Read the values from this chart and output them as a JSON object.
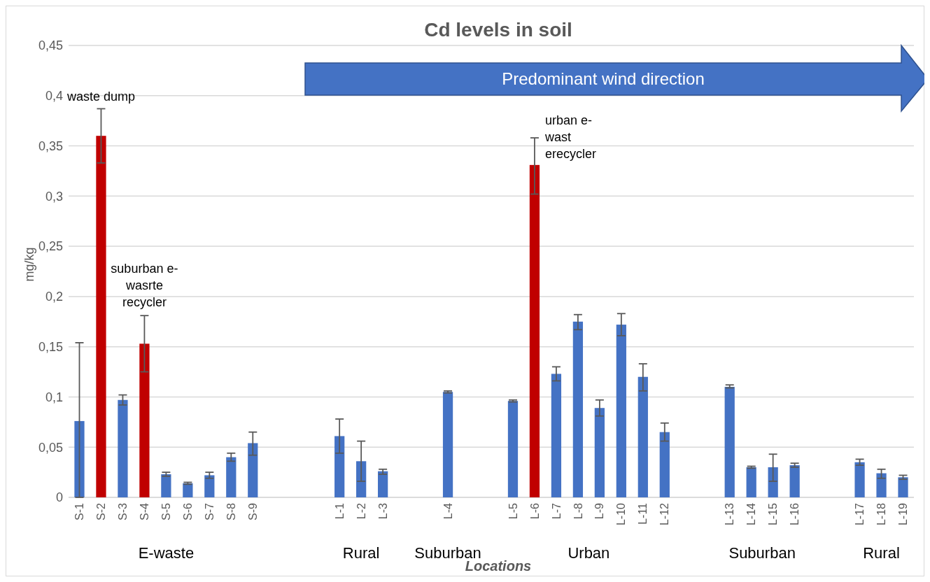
{
  "chart_data": {
    "type": "bar",
    "title": "Cd levels in soil",
    "xlabel": "Locations",
    "ylabel": "mg/kg",
    "categories": [
      "S-1",
      "S-2",
      "S-3",
      "S-4",
      "S-5",
      "S-6",
      "S-7",
      "S-8",
      "S-9",
      null,
      null,
      null,
      "L-1",
      "L-2",
      "L-3",
      null,
      null,
      "L-4",
      null,
      null,
      "L-5",
      "L-6",
      "L-7",
      "L-8",
      "L-9",
      "L-10",
      "L-11",
      "L-12",
      null,
      null,
      "L-13",
      "L-14",
      "L-15",
      "L-16",
      null,
      null,
      "L-17",
      "L-18",
      "L-19"
    ],
    "values": [
      0.076,
      0.36,
      0.097,
      0.153,
      0.023,
      0.014,
      0.022,
      0.04,
      0.054,
      null,
      null,
      null,
      0.061,
      0.036,
      0.026,
      null,
      null,
      0.105,
      null,
      null,
      0.096,
      0.331,
      0.123,
      0.175,
      0.089,
      0.172,
      0.12,
      0.065,
      null,
      null,
      0.11,
      0.03,
      0.03,
      0.032,
      null,
      null,
      0.035,
      0.024,
      0.02
    ],
    "colors": [
      "#4472c4",
      "#c00000",
      "#4472c4",
      "#c00000",
      "#4472c4",
      "#4472c4",
      "#4472c4",
      "#4472c4",
      "#4472c4",
      null,
      null,
      null,
      "#4472c4",
      "#4472c4",
      "#4472c4",
      null,
      null,
      "#4472c4",
      null,
      null,
      "#4472c4",
      "#c00000",
      "#4472c4",
      "#4472c4",
      "#4472c4",
      "#4472c4",
      "#4472c4",
      "#4472c4",
      null,
      null,
      "#4472c4",
      "#4472c4",
      "#4472c4",
      "#4472c4",
      null,
      null,
      "#4472c4",
      "#4472c4",
      "#4472c4"
    ],
    "errors": [
      [
        0,
        0.154
      ],
      [
        0.333,
        0.387
      ],
      [
        0.092,
        0.102
      ],
      [
        0.125,
        0.181
      ],
      [
        0.021,
        0.025
      ],
      [
        0.013,
        0.015
      ],
      [
        0.019,
        0.025
      ],
      [
        0.036,
        0.044
      ],
      [
        0.042,
        0.065
      ],
      null,
      null,
      null,
      [
        0.044,
        0.078
      ],
      [
        0.016,
        0.056
      ],
      [
        0.023,
        0.028
      ],
      null,
      null,
      [
        0.104,
        0.106
      ],
      null,
      null,
      [
        0.095,
        0.097
      ],
      [
        0.302,
        0.358
      ],
      [
        0.116,
        0.13
      ],
      [
        0.167,
        0.182
      ],
      [
        0.081,
        0.097
      ],
      [
        0.161,
        0.183
      ],
      [
        0.106,
        0.133
      ],
      [
        0.056,
        0.074
      ],
      null,
      null,
      [
        0.109,
        0.112
      ],
      [
        0.029,
        0.031
      ],
      [
        0.016,
        0.043
      ],
      [
        0.03,
        0.034
      ],
      null,
      null,
      [
        0.032,
        0.038
      ],
      [
        0.019,
        0.028
      ],
      [
        0.018,
        0.022
      ]
    ],
    "ylim": [
      0,
      0.45
    ],
    "yticks": [
      0,
      {
        "value": 0.05,
        "label": "0,05"
      },
      {
        "value": 0.1,
        "label": "0,1"
      },
      {
        "value": 0.15,
        "label": "0,15"
      },
      {
        "value": 0.2,
        "label": "0,2"
      },
      {
        "value": 0.25,
        "label": "0,25"
      },
      {
        "value": 0.3,
        "label": "0,3"
      },
      {
        "value": 0.35,
        "label": "0,35"
      },
      {
        "value": 0.4,
        "label": "0,4"
      },
      {
        "value": 0.45,
        "label": "0,45"
      }
    ],
    "grid": "y",
    "annotations": [
      "Predominant wind direction",
      "waste dump",
      "suburban e-\nwasrte\nrecycler",
      {
        "text": "urban e-\nwast\nerecycler",
        "x": "L-6",
        "y": 0.338
      },
      "E-waste",
      "Rural",
      "Suburban",
      "Urban",
      "Suburban",
      "Rural"
    ]
  }
}
